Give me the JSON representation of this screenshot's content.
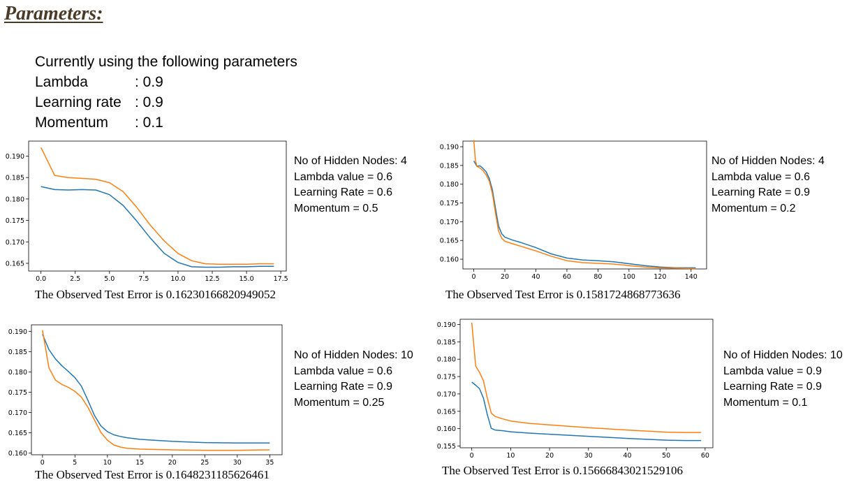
{
  "title": "Parameters:",
  "params": {
    "intro": "Currently using the following parameters",
    "rows": [
      {
        "label": "Lambda",
        "value": ": 0.9"
      },
      {
        "label": "Learning rate",
        "value": ": 0.9"
      },
      {
        "label": "Momentum",
        "value": ": 0.1"
      }
    ]
  },
  "panels": [
    {
      "info": [
        "No of Hidden Nodes: 4",
        "Lambda value = 0.6",
        "Learning Rate = 0.6",
        "Momentum  = 0.5"
      ],
      "error_text": "The Observed Test Error is  0.16230166820949052"
    },
    {
      "info": [
        "No of Hidden Nodes: 4",
        "Lambda value = 0.6",
        "Learning Rate = 0.9",
        "Momentum  = 0.2"
      ],
      "error_text": "The Observed Test Error is  0.1581724868773636"
    },
    {
      "info": [
        "No of Hidden Nodes: 10",
        "Lambda value = 0.6",
        "Learning Rate = 0.9",
        "Momentum  = 0.25"
      ],
      "error_text": "The Observed Test Error is  0.1648231185626461"
    },
    {
      "info": [
        "No of Hidden Nodes: 10",
        "Lambda value = 0.9",
        "Learning Rate = 0.9",
        "Momentum  = 0.1"
      ],
      "error_text": "The Observed Test Error is  0.15666843021529106"
    }
  ],
  "colors": {
    "series_1": "#1f77b4",
    "series_2": "#ff7f0e",
    "axis": "#000000",
    "title": "#4a3a26"
  },
  "chart_data": [
    {
      "type": "line",
      "xlim": [
        -0.9,
        17.9
      ],
      "ylim": [
        0.1632,
        0.1935
      ],
      "xticks": [
        0,
        2.5,
        5,
        7.5,
        10,
        12.5,
        15,
        17.5
      ],
      "xtick_labels": [
        "0.0",
        "2.5",
        "5.0",
        "7.5",
        "10.0",
        "12.5",
        "15.0",
        "17.5"
      ],
      "yticks": [
        0.165,
        0.17,
        0.175,
        0.18,
        0.185,
        0.19
      ],
      "ytick_labels": [
        "0.165",
        "0.170",
        "0.175",
        "0.180",
        "0.185",
        "0.190"
      ],
      "series": [
        {
          "color": "#1f77b4",
          "x": [
            0,
            1,
            2,
            3,
            4,
            5,
            6,
            7,
            8,
            9,
            10,
            11,
            12,
            13,
            14,
            15,
            16,
            17
          ],
          "y": [
            0.1829,
            0.1822,
            0.1821,
            0.1822,
            0.1821,
            0.181,
            0.1785,
            0.1748,
            0.1708,
            0.1673,
            0.1652,
            0.1642,
            0.1641,
            0.1641,
            0.1642,
            0.1642,
            0.1643,
            0.1643
          ]
        },
        {
          "color": "#ff7f0e",
          "x": [
            0,
            1,
            2,
            3,
            4,
            5,
            6,
            7,
            8,
            9,
            10,
            11,
            12,
            13,
            14,
            15,
            16,
            17
          ],
          "y": [
            0.192,
            0.1855,
            0.185,
            0.1848,
            0.1846,
            0.1838,
            0.1817,
            0.178,
            0.1738,
            0.1702,
            0.1673,
            0.1656,
            0.1649,
            0.1648,
            0.1648,
            0.1648,
            0.1649,
            0.1649
          ]
        }
      ]
    },
    {
      "type": "line",
      "xlim": [
        -7,
        150
      ],
      "ylim": [
        0.1574,
        0.1915
      ],
      "xticks": [
        0,
        20,
        40,
        60,
        80,
        100,
        120,
        140
      ],
      "xtick_labels": [
        "0",
        "20",
        "40",
        "60",
        "80",
        "100",
        "120",
        "140"
      ],
      "yticks": [
        0.16,
        0.165,
        0.17,
        0.175,
        0.18,
        0.185,
        0.19
      ],
      "ytick_labels": [
        "0.160",
        "0.165",
        "0.170",
        "0.175",
        "0.180",
        "0.185",
        "0.190"
      ],
      "series": [
        {
          "color": "#1f77b4",
          "x": [
            0,
            2,
            4,
            6,
            8,
            10,
            12,
            14,
            16,
            18,
            20,
            25,
            30,
            40,
            50,
            60,
            70,
            80,
            90,
            100,
            110,
            120,
            130,
            143
          ],
          "y": [
            0.1862,
            0.1848,
            0.1849,
            0.1842,
            0.1833,
            0.1815,
            0.1785,
            0.1735,
            0.1688,
            0.1668,
            0.1659,
            0.1651,
            0.1645,
            0.1631,
            0.1614,
            0.1603,
            0.1598,
            0.1596,
            0.1593,
            0.1588,
            0.1583,
            0.1579,
            0.1577,
            0.1577
          ]
        },
        {
          "color": "#ff7f0e",
          "x": [
            0,
            1,
            2,
            4,
            6,
            8,
            10,
            12,
            14,
            16,
            18,
            20,
            25,
            30,
            40,
            50,
            60,
            70,
            80,
            90,
            100,
            110,
            120,
            130,
            143
          ],
          "y": [
            0.1918,
            0.1865,
            0.1848,
            0.1843,
            0.1836,
            0.1825,
            0.1808,
            0.1775,
            0.1722,
            0.1675,
            0.1656,
            0.1648,
            0.1641,
            0.1635,
            0.1622,
            0.1608,
            0.1596,
            0.1591,
            0.1589,
            0.1587,
            0.1583,
            0.1579,
            0.1577,
            0.1576,
            0.1575
          ]
        }
      ]
    },
    {
      "type": "line",
      "xlim": [
        -1.7,
        36.9
      ],
      "ylim": [
        0.1596,
        0.1916
      ],
      "xticks": [
        0,
        5,
        10,
        15,
        20,
        25,
        30,
        35
      ],
      "xtick_labels": [
        "0",
        "5",
        "10",
        "15",
        "20",
        "25",
        "30",
        "35"
      ],
      "yticks": [
        0.16,
        0.165,
        0.17,
        0.175,
        0.18,
        0.185,
        0.19
      ],
      "ytick_labels": [
        "0.160",
        "0.165",
        "0.170",
        "0.175",
        "0.180",
        "0.185",
        "0.190"
      ],
      "series": [
        {
          "color": "#1f77b4",
          "x": [
            0,
            1,
            2,
            3,
            4,
            5,
            6,
            7,
            8,
            9,
            10,
            11,
            12,
            13,
            14,
            15,
            17,
            20,
            25,
            30,
            35
          ],
          "y": [
            0.1893,
            0.1855,
            0.1832,
            0.1815,
            0.1801,
            0.1786,
            0.1765,
            0.173,
            0.1693,
            0.1667,
            0.1653,
            0.1645,
            0.1641,
            0.1638,
            0.1636,
            0.1634,
            0.1632,
            0.1629,
            0.1626,
            0.1625,
            0.1625
          ]
        },
        {
          "color": "#ff7f0e",
          "x": [
            0,
            1,
            2,
            3,
            4,
            5,
            6,
            7,
            8,
            9,
            10,
            11,
            12,
            13,
            14,
            15,
            17,
            20,
            25,
            30,
            35
          ],
          "y": [
            0.1903,
            0.181,
            0.178,
            0.1769,
            0.1762,
            0.1752,
            0.1738,
            0.1713,
            0.1682,
            0.1651,
            0.1632,
            0.162,
            0.1615,
            0.1612,
            0.1611,
            0.161,
            0.1609,
            0.1608,
            0.1607,
            0.1607,
            0.1608
          ]
        }
      ]
    },
    {
      "type": "line",
      "xlim": [
        -3,
        62
      ],
      "ylim": [
        0.1545,
        0.1915
      ],
      "xticks": [
        0,
        10,
        20,
        30,
        40,
        50,
        60
      ],
      "xtick_labels": [
        "0",
        "10",
        "20",
        "30",
        "40",
        "50",
        "60"
      ],
      "yticks": [
        0.155,
        0.16,
        0.165,
        0.17,
        0.175,
        0.18,
        0.185,
        0.19
      ],
      "ytick_labels": [
        "0.155",
        "0.160",
        "0.165",
        "0.170",
        "0.175",
        "0.180",
        "0.185",
        "0.190"
      ],
      "series": [
        {
          "color": "#1f77b4",
          "x": [
            0,
            1,
            2,
            3,
            4,
            5,
            6,
            8,
            10,
            15,
            20,
            30,
            40,
            50,
            55,
            59
          ],
          "y": [
            0.1734,
            0.1725,
            0.1715,
            0.1688,
            0.164,
            0.1601,
            0.1596,
            0.1594,
            0.1591,
            0.1587,
            0.1584,
            0.1578,
            0.1572,
            0.1567,
            0.1566,
            0.1566
          ]
        },
        {
          "color": "#ff7f0e",
          "x": [
            0,
            1,
            2,
            3,
            4,
            5,
            6,
            8,
            10,
            15,
            20,
            30,
            40,
            50,
            55,
            59
          ],
          "y": [
            0.1905,
            0.178,
            0.1762,
            0.1738,
            0.1688,
            0.1645,
            0.1635,
            0.1628,
            0.1622,
            0.1615,
            0.1611,
            0.1603,
            0.1596,
            0.159,
            0.1589,
            0.1589
          ]
        }
      ]
    }
  ]
}
